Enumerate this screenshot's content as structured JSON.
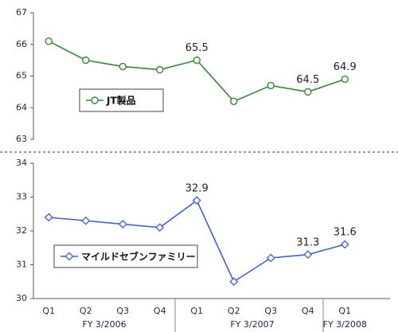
{
  "chart_data": [
    {
      "type": "line",
      "ylim": [
        63,
        67
      ],
      "yticks": [
        63,
        64,
        65,
        66,
        67
      ],
      "categories": [
        "Q1",
        "Q2",
        "Q3",
        "Q4",
        "Q1",
        "Q2",
        "Q3",
        "Q4",
        "Q1"
      ],
      "series": [
        {
          "name": "JT製品",
          "color": "#2e8b2e",
          "marker": "circle",
          "values": [
            66.1,
            65.5,
            65.3,
            65.2,
            65.5,
            64.2,
            64.7,
            64.5,
            64.9
          ]
        }
      ],
      "data_labels": [
        4,
        7,
        8
      ]
    },
    {
      "type": "line",
      "ylim": [
        30,
        34
      ],
      "yticks": [
        30,
        31,
        32,
        33,
        34
      ],
      "categories": [
        "Q1",
        "Q2",
        "Q3",
        "Q4",
        "Q1",
        "Q2",
        "Q3",
        "Q4",
        "Q1"
      ],
      "groups": [
        {
          "label": "FY 3/2006",
          "count": 4
        },
        {
          "label": "FY 3/2007",
          "count": 4
        },
        {
          "label": "FY 3/2008",
          "count": 1
        }
      ],
      "series": [
        {
          "name": "マイルドセブンファミリー",
          "color": "#3a5fe0",
          "marker": "diamond",
          "values": [
            32.4,
            32.3,
            32.2,
            32.1,
            32.9,
            30.5,
            31.2,
            31.3,
            31.6
          ]
        }
      ],
      "data_labels": [
        4,
        7,
        8
      ]
    }
  ]
}
